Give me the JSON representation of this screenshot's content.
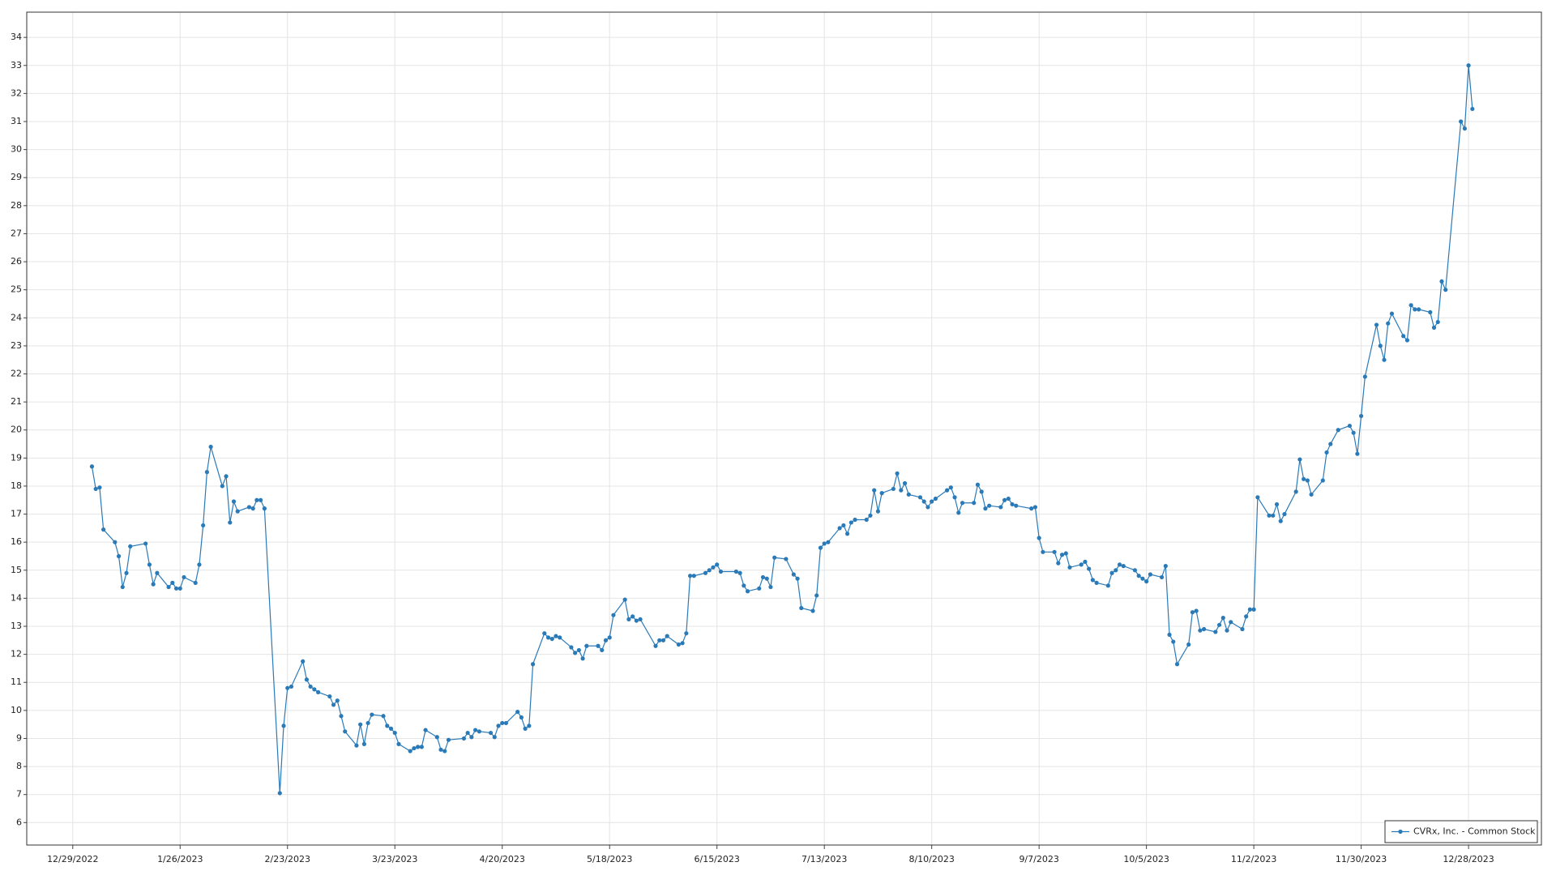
{
  "chart_data": {
    "type": "line",
    "x": [
      "1/3/2023",
      "1/4/2023",
      "1/5/2023",
      "1/6/2023",
      "1/9/2023",
      "1/10/2023",
      "1/11/2023",
      "1/12/2023",
      "1/13/2023",
      "1/17/2023",
      "1/18/2023",
      "1/19/2023",
      "1/20/2023",
      "1/23/2023",
      "1/24/2023",
      "1/25/2023",
      "1/26/2023",
      "1/27/2023",
      "1/30/2023",
      "1/31/2023",
      "2/1/2023",
      "2/2/2023",
      "2/3/2023",
      "2/6/2023",
      "2/7/2023",
      "2/8/2023",
      "2/9/2023",
      "2/10/2023",
      "2/13/2023",
      "2/14/2023",
      "2/15/2023",
      "2/16/2023",
      "2/17/2023",
      "2/21/2023",
      "2/22/2023",
      "2/23/2023",
      "2/24/2023",
      "2/27/2023",
      "2/28/2023",
      "3/1/2023",
      "3/2/2023",
      "3/3/2023",
      "3/6/2023",
      "3/7/2023",
      "3/8/2023",
      "3/9/2023",
      "3/10/2023",
      "3/13/2023",
      "3/14/2023",
      "3/15/2023",
      "3/16/2023",
      "3/17/2023",
      "3/20/2023",
      "3/21/2023",
      "3/22/2023",
      "3/23/2023",
      "3/24/2023",
      "3/27/2023",
      "3/28/2023",
      "3/29/2023",
      "3/30/2023",
      "3/31/2023",
      "4/3/2023",
      "4/4/2023",
      "4/5/2023",
      "4/6/2023",
      "4/10/2023",
      "4/11/2023",
      "4/12/2023",
      "4/13/2023",
      "4/14/2023",
      "4/17/2023",
      "4/18/2023",
      "4/19/2023",
      "4/20/2023",
      "4/21/2023",
      "4/24/2023",
      "4/25/2023",
      "4/26/2023",
      "4/27/2023",
      "4/28/2023",
      "5/1/2023",
      "5/2/2023",
      "5/3/2023",
      "5/4/2023",
      "5/5/2023",
      "5/8/2023",
      "5/9/2023",
      "5/10/2023",
      "5/11/2023",
      "5/12/2023",
      "5/15/2023",
      "5/16/2023",
      "5/17/2023",
      "5/18/2023",
      "5/19/2023",
      "5/22/2023",
      "5/23/2023",
      "5/24/2023",
      "5/25/2023",
      "5/26/2023",
      "5/30/2023",
      "5/31/2023",
      "6/1/2023",
      "6/2/2023",
      "6/5/2023",
      "6/6/2023",
      "6/7/2023",
      "6/8/2023",
      "6/9/2023",
      "6/12/2023",
      "6/13/2023",
      "6/14/2023",
      "6/15/2023",
      "6/16/2023",
      "6/20/2023",
      "6/21/2023",
      "6/22/2023",
      "6/23/2023",
      "6/26/2023",
      "6/27/2023",
      "6/28/2023",
      "6/29/2023",
      "6/30/2023",
      "7/3/2023",
      "7/5/2023",
      "7/6/2023",
      "7/7/2023",
      "7/10/2023",
      "7/11/2023",
      "7/12/2023",
      "7/13/2023",
      "7/14/2023",
      "7/17/2023",
      "7/18/2023",
      "7/19/2023",
      "7/20/2023",
      "7/21/2023",
      "7/24/2023",
      "7/25/2023",
      "7/26/2023",
      "7/27/2023",
      "7/28/2023",
      "7/31/2023",
      "8/1/2023",
      "8/2/2023",
      "8/3/2023",
      "8/4/2023",
      "8/7/2023",
      "8/8/2023",
      "8/9/2023",
      "8/10/2023",
      "8/11/2023",
      "8/14/2023",
      "8/15/2023",
      "8/16/2023",
      "8/17/2023",
      "8/18/2023",
      "8/21/2023",
      "8/22/2023",
      "8/23/2023",
      "8/24/2023",
      "8/25/2023",
      "8/28/2023",
      "8/29/2023",
      "8/30/2023",
      "8/31/2023",
      "9/1/2023",
      "9/5/2023",
      "9/6/2023",
      "9/7/2023",
      "9/8/2023",
      "9/11/2023",
      "9/12/2023",
      "9/13/2023",
      "9/14/2023",
      "9/15/2023",
      "9/18/2023",
      "9/19/2023",
      "9/20/2023",
      "9/21/2023",
      "9/22/2023",
      "9/25/2023",
      "9/26/2023",
      "9/27/2023",
      "9/28/2023",
      "9/29/2023",
      "10/2/2023",
      "10/3/2023",
      "10/4/2023",
      "10/5/2023",
      "10/6/2023",
      "10/9/2023",
      "10/10/2023",
      "10/11/2023",
      "10/12/2023",
      "10/13/2023",
      "10/16/2023",
      "10/17/2023",
      "10/18/2023",
      "10/19/2023",
      "10/20/2023",
      "10/23/2023",
      "10/24/2023",
      "10/25/2023",
      "10/26/2023",
      "10/27/2023",
      "10/30/2023",
      "10/31/2023",
      "11/1/2023",
      "11/2/2023",
      "11/3/2023",
      "11/6/2023",
      "11/7/2023",
      "11/8/2023",
      "11/9/2023",
      "11/10/2023",
      "11/13/2023",
      "11/14/2023",
      "11/15/2023",
      "11/16/2023",
      "11/17/2023",
      "11/20/2023",
      "11/21/2023",
      "11/22/2023",
      "11/24/2023",
      "11/27/2023",
      "11/28/2023",
      "11/29/2023",
      "11/30/2023",
      "12/1/2023",
      "12/4/2023",
      "12/5/2023",
      "12/6/2023",
      "12/7/2023",
      "12/8/2023",
      "12/11/2023",
      "12/12/2023",
      "12/13/2023",
      "12/14/2023",
      "12/15/2023",
      "12/18/2023",
      "12/19/2023",
      "12/20/2023",
      "12/21/2023",
      "12/22/2023",
      "12/26/2023",
      "12/27/2023",
      "12/28/2023",
      "12/29/2023"
    ],
    "series": [
      {
        "name": "CVRx, Inc. - Common Stock",
        "color": "#2a7ab8",
        "values": [
          18.7,
          17.9,
          17.95,
          16.45,
          16.0,
          15.5,
          14.4,
          14.9,
          15.85,
          15.95,
          15.2,
          14.5,
          14.9,
          14.4,
          14.55,
          14.35,
          14.35,
          14.75,
          14.55,
          15.2,
          16.6,
          18.5,
          19.4,
          18.0,
          18.35,
          16.7,
          17.45,
          17.1,
          17.25,
          17.2,
          17.5,
          17.5,
          17.2,
          7.05,
          9.45,
          10.8,
          10.85,
          11.75,
          11.1,
          10.85,
          10.75,
          10.65,
          10.5,
          10.2,
          10.35,
          9.8,
          9.25,
          8.75,
          9.5,
          8.8,
          9.55,
          9.85,
          9.8,
          9.45,
          9.35,
          9.2,
          8.8,
          8.55,
          8.65,
          8.7,
          8.7,
          9.3,
          9.05,
          8.6,
          8.55,
          8.95,
          9.0,
          9.2,
          9.05,
          9.3,
          9.25,
          9.2,
          9.05,
          9.45,
          9.55,
          9.55,
          9.95,
          9.75,
          9.35,
          9.45,
          11.65,
          12.75,
          12.6,
          12.55,
          12.65,
          12.6,
          12.25,
          12.05,
          12.15,
          11.85,
          12.3,
          12.3,
          12.15,
          12.5,
          12.6,
          13.4,
          13.95,
          13.25,
          13.35,
          13.2,
          13.25,
          12.3,
          12.5,
          12.5,
          12.65,
          12.35,
          12.4,
          12.75,
          14.8,
          14.8,
          14.9,
          15.0,
          15.1,
          15.2,
          14.95,
          14.95,
          14.9,
          14.45,
          14.25,
          14.35,
          14.75,
          14.7,
          14.4,
          15.45,
          15.4,
          14.85,
          14.7,
          13.65,
          13.55,
          14.1,
          15.8,
          15.95,
          16.0,
          16.5,
          16.6,
          16.3,
          16.7,
          16.8,
          16.8,
          16.95,
          17.85,
          17.1,
          17.75,
          17.9,
          18.45,
          17.85,
          18.1,
          17.7,
          17.6,
          17.45,
          17.25,
          17.45,
          17.55,
          17.85,
          17.95,
          17.6,
          17.05,
          17.4,
          17.4,
          18.05,
          17.8,
          17.2,
          17.3,
          17.25,
          17.5,
          17.55,
          17.35,
          17.3,
          17.2,
          17.25,
          16.15,
          15.65,
          15.65,
          15.25,
          15.55,
          15.6,
          15.1,
          15.2,
          15.3,
          15.05,
          14.65,
          14.55,
          14.45,
          14.9,
          15.0,
          15.2,
          15.15,
          15.0,
          14.8,
          14.7,
          14.6,
          14.85,
          14.75,
          15.15,
          12.7,
          12.45,
          11.65,
          12.35,
          13.5,
          13.55,
          12.85,
          12.9,
          12.8,
          13.05,
          13.3,
          12.85,
          13.15,
          12.9,
          13.35,
          13.6,
          13.6,
          17.6,
          16.95,
          16.95,
          17.35,
          16.75,
          17.0,
          17.8,
          18.95,
          18.25,
          18.2,
          17.7,
          18.2,
          19.2,
          19.5,
          20.0,
          20.15,
          19.9,
          19.15,
          20.5,
          21.9,
          23.75,
          23.0,
          22.5,
          23.8,
          24.15,
          23.35,
          23.2,
          24.45,
          24.3,
          24.3,
          24.2,
          23.65,
          23.85,
          25.3,
          25.0,
          31.0,
          30.75,
          33.0,
          31.45
        ]
      }
    ],
    "xlim": [
      "12/17/2022",
      "1/16/2024"
    ],
    "xticks": [
      "12/29/2022",
      "1/26/2023",
      "2/23/2023",
      "3/23/2023",
      "4/20/2023",
      "5/18/2023",
      "6/15/2023",
      "7/13/2023",
      "8/10/2023",
      "9/7/2023",
      "10/5/2023",
      "11/2/2023",
      "11/30/2023",
      "12/28/2023"
    ],
    "ylim": [
      5.2,
      34.9
    ],
    "yticks": [
      6,
      7,
      8,
      9,
      10,
      11,
      12,
      13,
      14,
      15,
      16,
      17,
      18,
      19,
      20,
      21,
      22,
      23,
      24,
      25,
      26,
      27,
      28,
      29,
      30,
      31,
      32,
      33,
      34
    ],
    "grid": true,
    "legend": "bottom-right"
  }
}
